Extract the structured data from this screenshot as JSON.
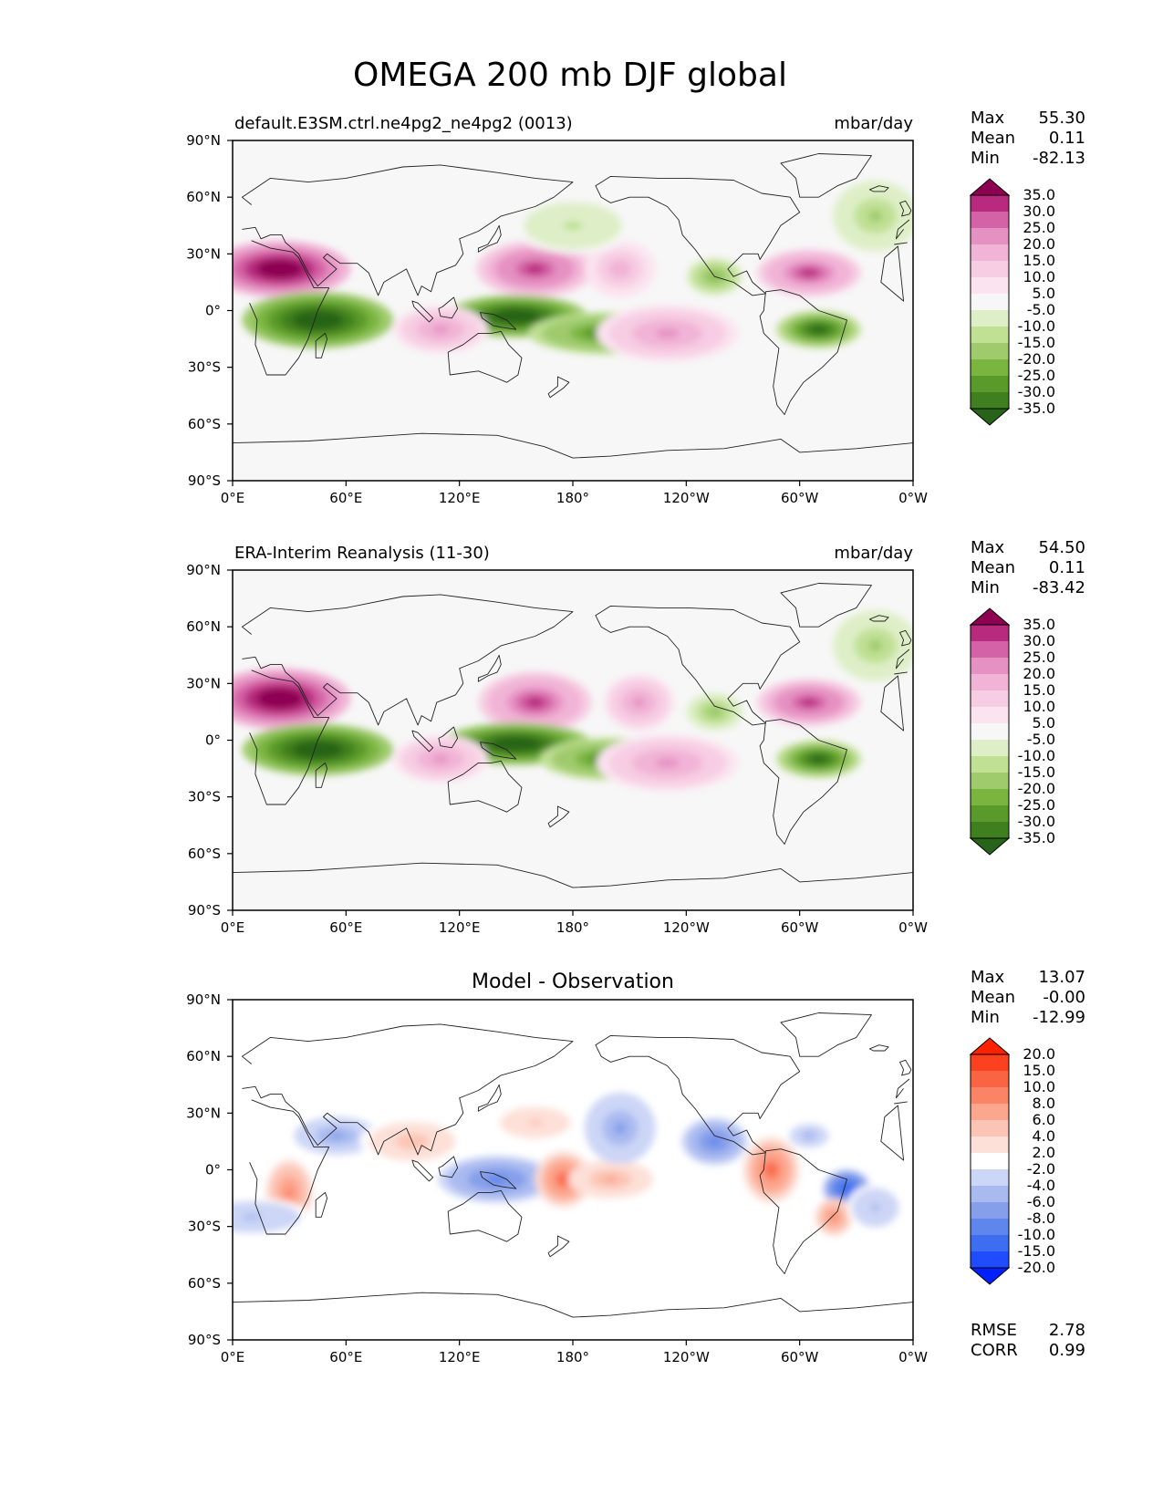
{
  "title": "OMEGA 200 mb DJF global",
  "x_ticks": [
    "0°E",
    "60°E",
    "120°E",
    "180°",
    "120°W",
    "60°W",
    "0°W"
  ],
  "y_ticks": [
    "90°N",
    "60°N",
    "30°N",
    "0°",
    "30°S",
    "60°S",
    "90°S"
  ],
  "stats_labels": {
    "max": "Max",
    "mean": "Mean",
    "min": "Min",
    "rmse": "RMSE",
    "corr": "CORR"
  },
  "colors": {
    "pink_green": [
      "#276419",
      "#3f7f1f",
      "#5a9a2b",
      "#7ab53f",
      "#9fcb6d",
      "#c0e094",
      "#deefc7",
      "#f7f7f7",
      "#fbe3ef",
      "#f7cde3",
      "#f1b4d6",
      "#e591c2",
      "#d462a6",
      "#b72a7e",
      "#8e0152"
    ],
    "blue_red": [
      "#0020ff",
      "#1f4cff",
      "#3d6df0",
      "#5f86ec",
      "#859fea",
      "#a9baf0",
      "#ccd6f6",
      "#ffffff",
      "#fde0d8",
      "#fcc4b4",
      "#fca68e",
      "#fb8467",
      "#fa6443",
      "#fb4120",
      "#ff2200"
    ]
  },
  "panels": [
    {
      "title_left": "default.E3SM.ctrl.ne4pg2_ne4pg2 (0013)",
      "title_center": "",
      "units": "mbar/day",
      "stats": {
        "max": "55.30",
        "mean": "0.11",
        "min": "-82.13"
      },
      "colorbar": {
        "palette": "pink_green",
        "labels": [
          "35.0",
          "30.0",
          "25.0",
          "20.0",
          "15.0",
          "10.0",
          "5.0",
          "-5.0",
          "-10.0",
          "-15.0",
          "-20.0",
          "-25.0",
          "-30.0",
          "-35.0"
        ]
      }
    },
    {
      "title_left": "ERA-Interim Reanalysis (11-30)",
      "title_center": "",
      "units": "mbar/day",
      "stats": {
        "max": "54.50",
        "mean": "0.11",
        "min": "-83.42"
      },
      "colorbar": {
        "palette": "pink_green",
        "labels": [
          "35.0",
          "30.0",
          "25.0",
          "20.0",
          "15.0",
          "10.0",
          "5.0",
          "-5.0",
          "-10.0",
          "-15.0",
          "-20.0",
          "-25.0",
          "-30.0",
          "-35.0"
        ]
      }
    },
    {
      "title_left": "",
      "title_center": "Model - Observation",
      "units": "",
      "stats": {
        "max": "13.07",
        "mean": "-0.00",
        "min": "-12.99",
        "rmse": "2.78",
        "corr": "0.99"
      },
      "colorbar": {
        "palette": "blue_red",
        "labels": [
          "20.0",
          "15.0",
          "10.0",
          "8.0",
          "6.0",
          "4.0",
          "2.0",
          "-2.0",
          "-4.0",
          "-6.0",
          "-8.0",
          "-10.0",
          "-15.0",
          "-20.0"
        ]
      }
    }
  ],
  "chart_data": {
    "type": "heatmap",
    "projection": "equirectangular, lon 0–360, lat 90°S–90°N",
    "features": [
      {
        "panel": 0,
        "kind": "positive",
        "lon": 25,
        "lat": 22,
        "value": 40,
        "rlon": 30,
        "rlat": 12
      },
      {
        "panel": 0,
        "kind": "negative",
        "lon": 45,
        "lat": -5,
        "value": -40,
        "rlon": 32,
        "rlat": 12
      },
      {
        "panel": 0,
        "kind": "positive",
        "lon": 160,
        "lat": 22,
        "value": 32,
        "rlon": 25,
        "rlat": 12
      },
      {
        "panel": 0,
        "kind": "negative",
        "lon": 150,
        "lat": -3,
        "value": -40,
        "rlon": 30,
        "rlat": 9
      },
      {
        "panel": 0,
        "kind": "negative",
        "lon": 200,
        "lat": -12,
        "value": -30,
        "rlon": 35,
        "rlat": 9
      },
      {
        "panel": 0,
        "kind": "positive",
        "lon": 305,
        "lat": 20,
        "value": 30,
        "rlon": 22,
        "rlat": 10
      },
      {
        "panel": 0,
        "kind": "negative",
        "lon": 310,
        "lat": -10,
        "value": -38,
        "rlon": 18,
        "rlat": 8
      },
      {
        "panel": 0,
        "kind": "positive",
        "lon": 230,
        "lat": -12,
        "value": 20,
        "rlon": 30,
        "rlat": 12
      },
      {
        "panel": 0,
        "kind": "positive",
        "lon": 110,
        "lat": -10,
        "value": 20,
        "rlon": 20,
        "rlat": 10
      },
      {
        "panel": 0,
        "kind": "negative",
        "lon": 255,
        "lat": 18,
        "value": -22,
        "rlon": 12,
        "rlat": 8
      },
      {
        "panel": 0,
        "kind": "positive",
        "lon": 205,
        "lat": 22,
        "value": 18,
        "rlon": 15,
        "rlat": 12
      },
      {
        "panel": 0,
        "kind": "negative",
        "lon": 180,
        "lat": 45,
        "value": -10,
        "rlon": 25,
        "rlat": 12
      },
      {
        "panel": 0,
        "kind": "negative",
        "lon": 340,
        "lat": 50,
        "value": -15,
        "rlon": 18,
        "rlat": 15
      },
      {
        "panel": 1,
        "kind": "positive",
        "lon": 25,
        "lat": 22,
        "value": 40,
        "rlon": 30,
        "rlat": 13
      },
      {
        "panel": 1,
        "kind": "negative",
        "lon": 45,
        "lat": -5,
        "value": -40,
        "rlon": 32,
        "rlat": 11
      },
      {
        "panel": 1,
        "kind": "positive",
        "lon": 160,
        "lat": 20,
        "value": 30,
        "rlon": 24,
        "rlat": 13
      },
      {
        "panel": 1,
        "kind": "negative",
        "lon": 150,
        "lat": -2,
        "value": -40,
        "rlon": 32,
        "rlat": 9
      },
      {
        "panel": 1,
        "kind": "negative",
        "lon": 200,
        "lat": -10,
        "value": -30,
        "rlon": 30,
        "rlat": 9
      },
      {
        "panel": 1,
        "kind": "positive",
        "lon": 305,
        "lat": 20,
        "value": 32,
        "rlon": 22,
        "rlat": 10
      },
      {
        "panel": 1,
        "kind": "negative",
        "lon": 310,
        "lat": -10,
        "value": -38,
        "rlon": 18,
        "rlat": 8
      },
      {
        "panel": 1,
        "kind": "positive",
        "lon": 230,
        "lat": -12,
        "value": 20,
        "rlon": 30,
        "rlat": 12
      },
      {
        "panel": 1,
        "kind": "positive",
        "lon": 110,
        "lat": -10,
        "value": 20,
        "rlon": 20,
        "rlat": 10
      },
      {
        "panel": 1,
        "kind": "positive",
        "lon": 215,
        "lat": 20,
        "value": 22,
        "rlon": 15,
        "rlat": 12
      },
      {
        "panel": 1,
        "kind": "negative",
        "lon": 255,
        "lat": 15,
        "value": -18,
        "rlon": 12,
        "rlat": 8
      },
      {
        "panel": 1,
        "kind": "negative",
        "lon": 340,
        "lat": 50,
        "value": -15,
        "rlon": 18,
        "rlat": 15
      },
      {
        "panel": 2,
        "kind": "positive",
        "lon": 30,
        "lat": -12,
        "value": 8,
        "rlon": 10,
        "rlat": 14
      },
      {
        "panel": 2,
        "kind": "negative",
        "lon": 55,
        "lat": 18,
        "value": -6,
        "rlon": 18,
        "rlat": 8
      },
      {
        "panel": 2,
        "kind": "positive",
        "lon": 95,
        "lat": 15,
        "value": 5,
        "rlon": 22,
        "rlat": 10
      },
      {
        "panel": 2,
        "kind": "negative",
        "lon": 140,
        "lat": -5,
        "value": -8,
        "rlon": 25,
        "rlat": 10
      },
      {
        "panel": 2,
        "kind": "positive",
        "lon": 175,
        "lat": -5,
        "value": 10,
        "rlon": 12,
        "rlat": 12
      },
      {
        "panel": 2,
        "kind": "positive",
        "lon": 200,
        "lat": -5,
        "value": 6,
        "rlon": 18,
        "rlat": 8
      },
      {
        "panel": 2,
        "kind": "negative",
        "lon": 205,
        "lat": 22,
        "value": -6,
        "rlon": 15,
        "rlat": 15
      },
      {
        "panel": 2,
        "kind": "negative",
        "lon": 255,
        "lat": 15,
        "value": -8,
        "rlon": 14,
        "rlat": 10
      },
      {
        "panel": 2,
        "kind": "positive",
        "lon": 285,
        "lat": 0,
        "value": 10,
        "rlon": 12,
        "rlat": 14
      },
      {
        "panel": 2,
        "kind": "negative",
        "lon": 325,
        "lat": -10,
        "value": -13,
        "rlon": 10,
        "rlat": 8
      },
      {
        "panel": 2,
        "kind": "positive",
        "lon": 318,
        "lat": -25,
        "value": 8,
        "rlon": 8,
        "rlat": 8
      },
      {
        "panel": 2,
        "kind": "negative",
        "lon": 10,
        "lat": -25,
        "value": -4,
        "rlon": 25,
        "rlat": 8
      },
      {
        "panel": 2,
        "kind": "negative",
        "lon": 305,
        "lat": 18,
        "value": -5,
        "rlon": 10,
        "rlat": 6
      },
      {
        "panel": 2,
        "kind": "positive",
        "lon": 160,
        "lat": 25,
        "value": 4,
        "rlon": 18,
        "rlat": 8
      },
      {
        "panel": 2,
        "kind": "negative",
        "lon": 340,
        "lat": -20,
        "value": -4,
        "rlon": 12,
        "rlat": 10
      }
    ]
  }
}
